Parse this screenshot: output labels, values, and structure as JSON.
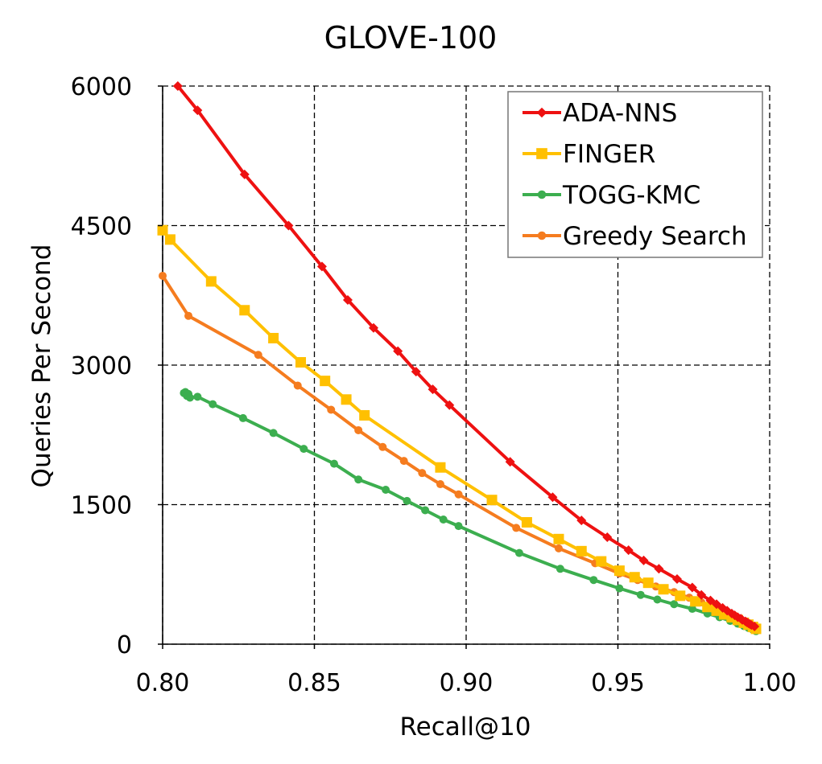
{
  "chart_data": {
    "type": "line",
    "title": "GLOVE-100",
    "xlabel": "Recall@10",
    "ylabel": "Queries Per Second",
    "xlim": [
      0.8,
      1.0
    ],
    "ylim": [
      0,
      6000
    ],
    "xticks": [
      "0.80",
      "0.85",
      "0.90",
      "0.95",
      "1.00"
    ],
    "yticks": [
      "0",
      "1500",
      "3000",
      "4500",
      "6000"
    ],
    "grid": true,
    "legend_position": "top-right",
    "series": [
      {
        "name": "ADA-NNS",
        "color": "#ee1111",
        "marker": "diamond",
        "x": [
          0.805,
          0.8115,
          0.827,
          0.8415,
          0.8525,
          0.861,
          0.8695,
          0.8775,
          0.8835,
          0.889,
          0.8945,
          0.9145,
          0.9285,
          0.938,
          0.9465,
          0.9535,
          0.9585,
          0.9635,
          0.9695,
          0.9745,
          0.9775,
          0.9805,
          0.9825,
          0.9845,
          0.986,
          0.9875,
          0.9885,
          0.9895,
          0.9905,
          0.991,
          0.992,
          0.9925,
          0.993,
          0.9935,
          0.994,
          0.995
        ],
        "y": [
          6000,
          5740,
          5050,
          4500,
          4060,
          3700,
          3400,
          3150,
          2930,
          2740,
          2570,
          1960,
          1580,
          1330,
          1150,
          1010,
          900,
          810,
          700,
          610,
          530,
          470,
          430,
          390,
          360,
          330,
          310,
          290,
          275,
          260,
          245,
          235,
          225,
          215,
          205,
          190
        ]
      },
      {
        "name": "FINGER",
        "color": "#ffc000",
        "marker": "square",
        "x": [
          0.8,
          0.8025,
          0.816,
          0.827,
          0.8365,
          0.8455,
          0.8535,
          0.8605,
          0.8665,
          0.8915,
          0.9085,
          0.92,
          0.9305,
          0.938,
          0.9445,
          0.9505,
          0.9555,
          0.96,
          0.965,
          0.9705,
          0.9755,
          0.9795,
          0.9825,
          0.985,
          0.9875,
          0.9895,
          0.9915,
          0.993,
          0.9945,
          0.9955
        ],
        "y": [
          4450,
          4350,
          3900,
          3590,
          3290,
          3030,
          2830,
          2630,
          2460,
          1900,
          1550,
          1310,
          1130,
          1000,
          890,
          790,
          720,
          660,
          590,
          520,
          460,
          400,
          360,
          320,
          290,
          260,
          230,
          210,
          185,
          165
        ]
      },
      {
        "name": "TOGG-KMC",
        "color": "#3cae4f",
        "marker": "circle",
        "x": [
          0.807,
          0.8075,
          0.808,
          0.8085,
          0.809,
          0.8115,
          0.8165,
          0.8265,
          0.8365,
          0.8465,
          0.8565,
          0.8645,
          0.8735,
          0.8805,
          0.8865,
          0.8925,
          0.8975,
          0.9175,
          0.931,
          0.942,
          0.9505,
          0.9575,
          0.963,
          0.9685,
          0.9745,
          0.9795,
          0.9835,
          0.987,
          0.9895,
          0.9915,
          0.993,
          0.9945,
          0.9955
        ],
        "y": [
          2700,
          2710,
          2670,
          2690,
          2650,
          2660,
          2580,
          2430,
          2270,
          2100,
          1940,
          1770,
          1660,
          1540,
          1440,
          1340,
          1270,
          980,
          810,
          690,
          600,
          530,
          480,
          430,
          380,
          330,
          290,
          250,
          220,
          195,
          175,
          155,
          140
        ]
      },
      {
        "name": "Greedy Search",
        "color": "#f57c1f",
        "marker": "circle",
        "x": [
          0.8,
          0.8085,
          0.8315,
          0.8445,
          0.8555,
          0.8645,
          0.8725,
          0.8795,
          0.8855,
          0.8915,
          0.8975,
          0.9165,
          0.9305,
          0.9425,
          0.9505,
          0.9565,
          0.9625,
          0.9685,
          0.9735,
          0.9775,
          0.9805,
          0.9835,
          0.9855,
          0.9875,
          0.9895,
          0.9915,
          0.993,
          0.9945,
          0.9955
        ],
        "y": [
          3960,
          3530,
          3110,
          2780,
          2520,
          2300,
          2120,
          1970,
          1840,
          1720,
          1610,
          1250,
          1030,
          870,
          760,
          690,
          620,
          560,
          500,
          450,
          400,
          360,
          330,
          300,
          270,
          240,
          215,
          190,
          170
        ]
      }
    ]
  }
}
